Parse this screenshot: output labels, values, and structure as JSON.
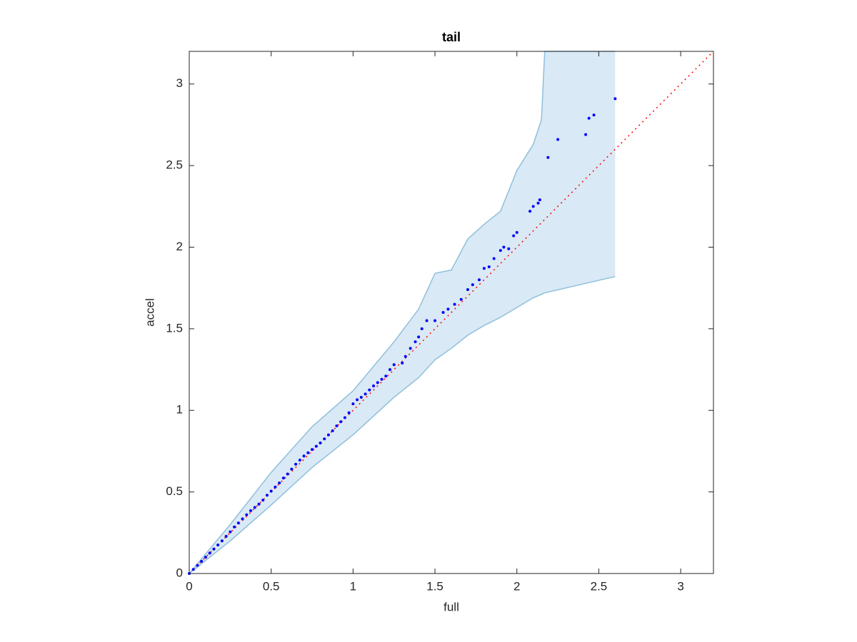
{
  "chart_data": {
    "type": "scatter",
    "title": "tail",
    "x_label": "full",
    "y_label": "accel",
    "xlim": [
      0,
      3.2
    ],
    "ylim": [
      0,
      3.2
    ],
    "xticks": [
      0,
      0.5,
      1,
      1.5,
      2,
      2.5,
      3
    ],
    "yticks": [
      0,
      0.5,
      1,
      1.5,
      2,
      2.5,
      3
    ],
    "band": {
      "color": "#d9e9f5",
      "edge_color": "#8fbfdc",
      "x": [
        0,
        0.25,
        0.5,
        0.75,
        1.0,
        1.25,
        1.4,
        1.5,
        1.6,
        1.7,
        1.8,
        1.9,
        2.0,
        2.1,
        2.15,
        2.17,
        2.6
      ],
      "upper": [
        0,
        0.3,
        0.62,
        0.9,
        1.12,
        1.42,
        1.62,
        1.84,
        1.86,
        2.05,
        2.14,
        2.22,
        2.47,
        2.63,
        2.78,
        3.2,
        3.2
      ],
      "lower": [
        0,
        0.2,
        0.42,
        0.65,
        0.85,
        1.08,
        1.2,
        1.31,
        1.38,
        1.46,
        1.52,
        1.57,
        1.63,
        1.69,
        1.71,
        1.72,
        1.82
      ]
    },
    "points": {
      "color": "#0000ff",
      "x": [
        0,
        0.025,
        0.05,
        0.075,
        0.1,
        0.125,
        0.15,
        0.175,
        0.2,
        0.225,
        0.25,
        0.275,
        0.3,
        0.325,
        0.35,
        0.375,
        0.4,
        0.425,
        0.45,
        0.475,
        0.5,
        0.525,
        0.55,
        0.575,
        0.6,
        0.625,
        0.65,
        0.675,
        0.7,
        0.725,
        0.75,
        0.775,
        0.8,
        0.825,
        0.85,
        0.875,
        0.9,
        0.925,
        0.95,
        0.975,
        1.0,
        1.025,
        1.05,
        1.075,
        1.1,
        1.125,
        1.15,
        1.175,
        1.2,
        1.225,
        1.25,
        1.3,
        1.32,
        1.35,
        1.38,
        1.4,
        1.42,
        1.45,
        1.5,
        1.55,
        1.58,
        1.62,
        1.66,
        1.7,
        1.73,
        1.77,
        1.8,
        1.83,
        1.86,
        1.9,
        1.92,
        1.95,
        1.98,
        2.0,
        2.08,
        2.1,
        2.13,
        2.14,
        2.19,
        2.25,
        2.42,
        2.44,
        2.47,
        2.6
      ],
      "values": [
        0,
        0.025,
        0.05,
        0.075,
        0.1,
        0.125,
        0.15,
        0.175,
        0.2,
        0.228,
        0.255,
        0.285,
        0.31,
        0.335,
        0.36,
        0.385,
        0.405,
        0.425,
        0.45,
        0.48,
        0.505,
        0.53,
        0.555,
        0.585,
        0.61,
        0.64,
        0.67,
        0.695,
        0.72,
        0.74,
        0.76,
        0.78,
        0.8,
        0.825,
        0.85,
        0.875,
        0.905,
        0.93,
        0.955,
        0.985,
        1.04,
        1.065,
        1.08,
        1.1,
        1.125,
        1.15,
        1.17,
        1.19,
        1.21,
        1.25,
        1.28,
        1.29,
        1.33,
        1.38,
        1.42,
        1.45,
        1.5,
        1.55,
        1.55,
        1.6,
        1.62,
        1.65,
        1.68,
        1.74,
        1.77,
        1.8,
        1.87,
        1.88,
        1.93,
        1.98,
        2.0,
        1.99,
        2.07,
        2.09,
        2.22,
        2.25,
        2.27,
        2.29,
        2.55,
        2.66,
        2.69,
        2.79,
        2.81,
        2.91
      ]
    },
    "reference": {
      "color": "#ff0000",
      "x": [
        0,
        3.2
      ],
      "values": [
        0,
        3.2
      ]
    }
  }
}
